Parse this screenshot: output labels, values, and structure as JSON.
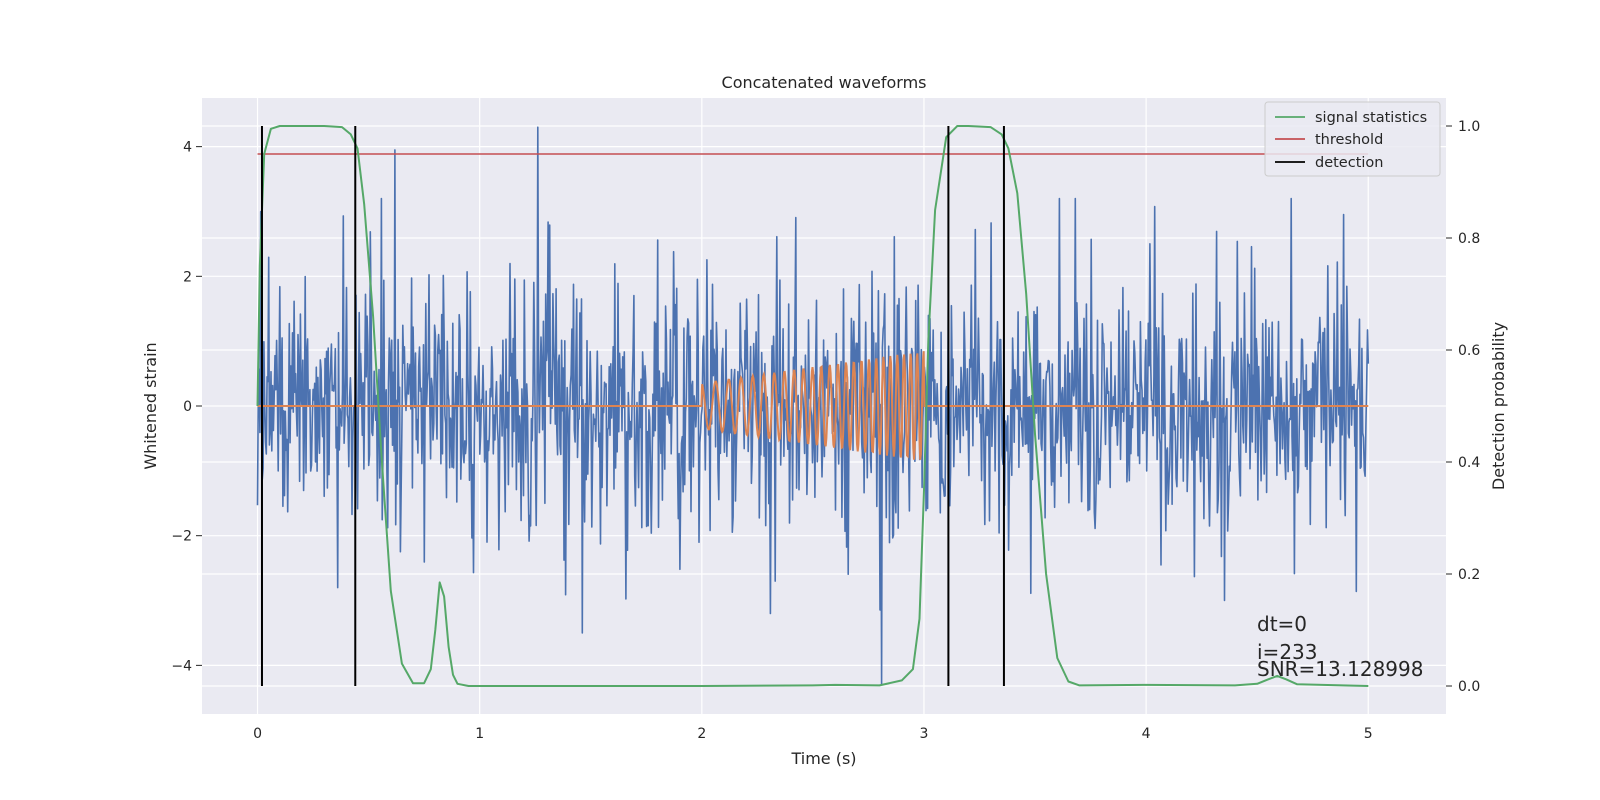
{
  "chart_data": {
    "type": "line",
    "title": "Concatenated waveforms",
    "xlabel": "Time (s)",
    "ylabel": "Whitened strain",
    "y2label": "Detection probability",
    "xlim": [
      -0.25,
      5.35
    ],
    "ylim": [
      -4.75,
      4.75
    ],
    "y2lim": [
      -0.05,
      1.05
    ],
    "x_ticks": [
      0,
      1,
      2,
      3,
      4,
      5
    ],
    "x_tick_labels": [
      "0",
      "1",
      "2",
      "3",
      "4",
      "5"
    ],
    "y_ticks": [
      -4,
      -2,
      0,
      2,
      4
    ],
    "y_tick_labels": [
      "−4",
      "−2",
      "0",
      "2",
      "4"
    ],
    "y2_ticks": [
      0.0,
      0.2,
      0.4,
      0.6,
      0.8,
      1.0
    ],
    "y2_tick_labels": [
      "0.0",
      "0.2",
      "0.4",
      "0.6",
      "0.8",
      "1.0"
    ],
    "grid": true,
    "legend_position": "top-right",
    "colors": {
      "background": "#eaeaf2",
      "grid": "#ffffff",
      "noise": "#4c72b0",
      "injection": "#dd8452",
      "signal_statistics": "#55a868",
      "threshold": "#c44e52",
      "detection": "#000000"
    },
    "series": [
      {
        "role": "whitened_noise",
        "axis": "left",
        "x_range": [
          0,
          5
        ],
        "typical_amplitude": 1.2,
        "extremes": [
          {
            "x": 1.26,
            "y": 4.3
          },
          {
            "x": 0.62,
            "y": 3.95
          },
          {
            "x": 2.81,
            "y": -4.3
          },
          {
            "x": 1.46,
            "y": -3.5
          },
          {
            "x": 0.36,
            "y": -2.8
          }
        ]
      },
      {
        "role": "injected_chirp",
        "axis": "left",
        "x_range": [
          0,
          5
        ],
        "chirp_start": 2.0,
        "chirp_end": 3.0,
        "amplitude_start": 0.35,
        "amplitude_end": 0.85,
        "freq_start": 15,
        "freq_end": 35
      },
      {
        "name": "signal statistics",
        "axis": "right",
        "x": [
          0,
          0.01,
          0.03,
          0.06,
          0.1,
          0.2,
          0.3,
          0.38,
          0.42,
          0.45,
          0.48,
          0.52,
          0.56,
          0.6,
          0.65,
          0.7,
          0.75,
          0.78,
          0.8,
          0.82,
          0.84,
          0.86,
          0.88,
          0.9,
          0.95,
          1.0,
          1.5,
          2.0,
          2.5,
          2.6,
          2.8,
          2.9,
          2.95,
          2.98,
          3.0,
          3.02,
          3.05,
          3.1,
          3.15,
          3.2,
          3.3,
          3.35,
          3.38,
          3.42,
          3.46,
          3.5,
          3.55,
          3.6,
          3.65,
          3.7,
          4.0,
          4.4,
          4.5,
          4.55,
          4.59,
          4.63,
          4.68,
          5.0
        ],
        "y": [
          0.5,
          0.75,
          0.95,
          0.995,
          1.0,
          1.0,
          1.0,
          0.998,
          0.985,
          0.96,
          0.86,
          0.66,
          0.4,
          0.17,
          0.04,
          0.005,
          0.005,
          0.03,
          0.1,
          0.185,
          0.16,
          0.07,
          0.02,
          0.004,
          0.0,
          0.0,
          0.0,
          0.0,
          0.001,
          0.002,
          0.001,
          0.01,
          0.03,
          0.12,
          0.35,
          0.62,
          0.85,
          0.98,
          1.0,
          1.0,
          0.998,
          0.985,
          0.96,
          0.88,
          0.7,
          0.45,
          0.2,
          0.05,
          0.008,
          0.001,
          0.002,
          0.001,
          0.004,
          0.012,
          0.018,
          0.012,
          0.003,
          0.0
        ]
      },
      {
        "name": "threshold",
        "axis": "right",
        "x": [
          0,
          5
        ],
        "y": [
          0.95,
          0.95
        ]
      },
      {
        "name": "detection",
        "axis": "right",
        "type": "vlines",
        "x": [
          0.02,
          0.44,
          3.11,
          3.36
        ],
        "y_range": [
          0.0,
          1.0
        ]
      }
    ],
    "legend": [
      "signal statistics",
      "threshold",
      "detection"
    ],
    "annotations": [
      "dt=0",
      "i=233",
      "SNR=13.128998"
    ]
  }
}
